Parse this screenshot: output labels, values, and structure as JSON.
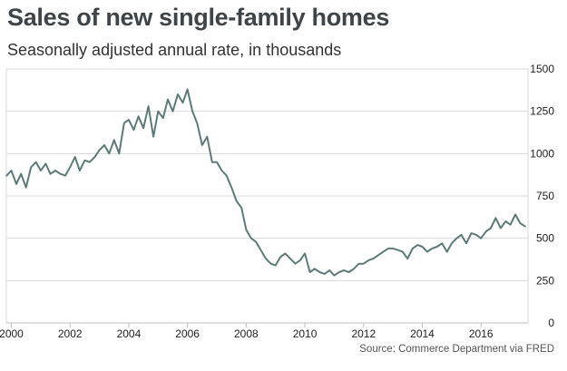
{
  "chart_data": {
    "type": "line",
    "title": "Sales of new single-family homes",
    "subtitle": "Seasonally adjusted annual rate, in thousands",
    "source": "Source: Commerce Department via FRED",
    "xlabel": "",
    "ylabel": "",
    "xlim": [
      1999.83,
      2017.6
    ],
    "ylim": [
      0,
      1500
    ],
    "x_ticks": [
      "2000",
      "2002",
      "2004",
      "2006",
      "2008",
      "2010",
      "2012",
      "2014",
      "2016"
    ],
    "y_ticks": [
      "0",
      "250",
      "500",
      "750",
      "1000",
      "1250",
      "1500"
    ],
    "grid": "horizontal",
    "line_color": "#5e7a78",
    "series": [
      {
        "x": [
          1999.84,
          2000.0,
          2000.17,
          2000.33,
          2000.5,
          2000.67,
          2000.84,
          2001.0,
          2001.17,
          2001.33,
          2001.5,
          2001.67,
          2001.84,
          2002.0,
          2002.17,
          2002.33,
          2002.5,
          2002.67,
          2002.84,
          2003.0,
          2003.17,
          2003.33,
          2003.5,
          2003.67,
          2003.84,
          2004.0,
          2004.17,
          2004.33,
          2004.5,
          2004.67,
          2004.84,
          2005.0,
          2005.17,
          2005.33,
          2005.5,
          2005.67,
          2005.84,
          2006.0,
          2006.17,
          2006.33,
          2006.5,
          2006.67,
          2006.84,
          2007.0,
          2007.17,
          2007.33,
          2007.5,
          2007.67,
          2007.84,
          2008.0,
          2008.17,
          2008.33,
          2008.5,
          2008.67,
          2008.84,
          2009.0,
          2009.17,
          2009.33,
          2009.5,
          2009.67,
          2009.84,
          2010.0,
          2010.17,
          2010.33,
          2010.5,
          2010.67,
          2010.84,
          2011.0,
          2011.17,
          2011.33,
          2011.5,
          2011.67,
          2011.84,
          2012.0,
          2012.17,
          2012.33,
          2012.5,
          2012.67,
          2012.84,
          2013.0,
          2013.17,
          2013.33,
          2013.5,
          2013.67,
          2013.84,
          2014.0,
          2014.17,
          2014.33,
          2014.5,
          2014.67,
          2014.84,
          2015.0,
          2015.17,
          2015.33,
          2015.5,
          2015.67,
          2015.84,
          2016.0,
          2016.17,
          2016.33,
          2016.5,
          2016.67,
          2016.84,
          2017.0,
          2017.17,
          2017.33,
          2017.5
        ],
        "y": [
          870,
          900,
          820,
          880,
          800,
          920,
          950,
          900,
          940,
          880,
          900,
          880,
          870,
          920,
          980,
          900,
          960,
          950,
          980,
          1020,
          1050,
          1000,
          1080,
          1000,
          1180,
          1200,
          1140,
          1220,
          1150,
          1280,
          1100,
          1250,
          1210,
          1320,
          1250,
          1350,
          1300,
          1380,
          1250,
          1180,
          1050,
          1100,
          950,
          950,
          900,
          870,
          800,
          720,
          680,
          550,
          500,
          480,
          430,
          380,
          350,
          340,
          390,
          410,
          380,
          350,
          370,
          410,
          300,
          320,
          300,
          290,
          310,
          280,
          300,
          310,
          300,
          320,
          350,
          350,
          370,
          380,
          400,
          420,
          440,
          440,
          430,
          420,
          380,
          440,
          460,
          450,
          420,
          440,
          450,
          470,
          420,
          470,
          500,
          520,
          470,
          530,
          520,
          500,
          540,
          560,
          620,
          560,
          600,
          580,
          640,
          590,
          570
        ]
      }
    ]
  }
}
